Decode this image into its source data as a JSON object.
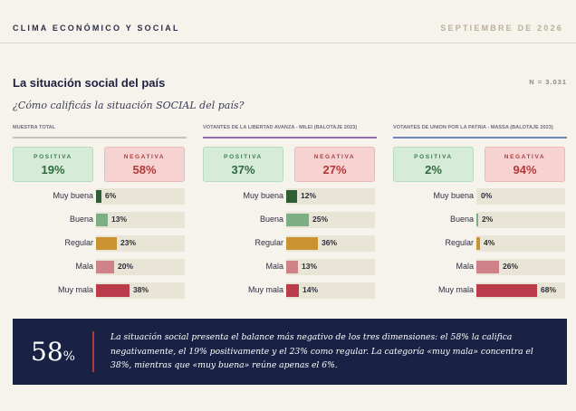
{
  "header": {
    "section": "CLIMA ECONÓMICO Y SOCIAL",
    "date": "SEPTIEMBRE DE 2026"
  },
  "title": "La situación social del país",
  "sample_label": "N = 3.031",
  "question": "¿Cómo calificás la situación SOCIAL del país?",
  "colors": {
    "muy_buena": "#2f5e36",
    "buena": "#7eaf84",
    "regular": "#c99331",
    "mala": "#d08289",
    "muy_mala": "#bb3d4c",
    "navy": "#192145",
    "accent_red": "#b13c3c"
  },
  "kpi_labels": {
    "positive": "POSITIVA",
    "negative": "NEGATIVA"
  },
  "chart_data": [
    {
      "type": "bar",
      "orientation": "horizontal",
      "panel_title": "MUESTRA TOTAL",
      "line_color": "#c9c3b5",
      "positive": "19%",
      "negative": "58%",
      "categories": [
        "Muy buena",
        "Buena",
        "Regular",
        "Mala",
        "Muy mala"
      ],
      "values": [
        6,
        13,
        23,
        20,
        38
      ],
      "value_labels": [
        "6%",
        "13%",
        "23%",
        "20%",
        "38%"
      ]
    },
    {
      "type": "bar",
      "orientation": "horizontal",
      "panel_title": "VOTANTES DE LA LIBERTAD AVANZA - MILEI (BALOTAJE 2023)",
      "line_color": "#8d6fb0",
      "positive": "37%",
      "negative": "27%",
      "categories": [
        "Muy buena",
        "Buena",
        "Regular",
        "Mala",
        "Muy mala"
      ],
      "values": [
        12,
        25,
        36,
        13,
        14
      ],
      "value_labels": [
        "12%",
        "25%",
        "36%",
        "13%",
        "14%"
      ]
    },
    {
      "type": "bar",
      "orientation": "horizontal",
      "panel_title": "VOTANTES DE UNIÓN POR LA PATRIA - MASSA (BALOTAJE 2023)",
      "line_color": "#6f86b8",
      "positive": "2%",
      "negative": "94%",
      "categories": [
        "Muy buena",
        "Buena",
        "Regular",
        "Mala",
        "Muy mala"
      ],
      "values": [
        0,
        2,
        4,
        26,
        68
      ],
      "value_labels": [
        "0%",
        "2%",
        "4%",
        "26%",
        "68%"
      ]
    }
  ],
  "footer": {
    "big_value": "58",
    "big_unit": "%",
    "text": "La situación social presenta el balance más negativo de los tres dimensiones: el 58% la califica negativamente, el 19% positivamente y el 23% como regular. La categoría «muy mala» concentra el 38%, mientras que «muy buena» reúne apenas el 6%."
  }
}
